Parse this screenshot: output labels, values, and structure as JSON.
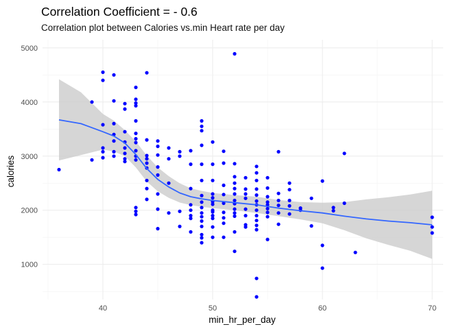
{
  "chart_data": {
    "type": "scatter",
    "title": "Correlation Coefficient = - 0.6",
    "subtitle": "Correlation plot between Calories vs.min Heart rate per day",
    "xlabel": "min_hr_per_day",
    "ylabel": "calories",
    "xlim": [
      34.5,
      71
    ],
    "ylim": [
      350,
      5150
    ],
    "x_ticks": [
      40,
      50,
      60,
      70
    ],
    "y_ticks": [
      1000,
      2000,
      3000,
      4000,
      5000
    ],
    "x_tick_labels": [
      "40",
      "50",
      "60",
      "70"
    ],
    "y_tick_labels": [
      "1000",
      "2000",
      "3000",
      "4000",
      "5000"
    ],
    "grid": true,
    "point_color": "#0000ff",
    "smooth_color": "#3366ff",
    "ribbon_color": "#cccccc",
    "points": [
      [
        36,
        2750
      ],
      [
        39,
        4000
      ],
      [
        39,
        2930
      ],
      [
        40,
        4550
      ],
      [
        40,
        4400
      ],
      [
        40,
        3580
      ],
      [
        40,
        3150
      ],
      [
        40,
        3080
      ],
      [
        40,
        2970
      ],
      [
        41,
        4500
      ],
      [
        41,
        4020
      ],
      [
        41,
        3600
      ],
      [
        41,
        3400
      ],
      [
        41,
        3280
      ],
      [
        41,
        3080
      ],
      [
        41,
        3000
      ],
      [
        42,
        3970
      ],
      [
        42,
        3870
      ],
      [
        42,
        3450
      ],
      [
        42,
        3260
      ],
      [
        42,
        3150
      ],
      [
        42,
        3050
      ],
      [
        42,
        2950
      ],
      [
        42,
        2900
      ],
      [
        43,
        4270
      ],
      [
        43,
        4050
      ],
      [
        43,
        3980
      ],
      [
        43,
        3930
      ],
      [
        43,
        3650
      ],
      [
        43,
        3420
      ],
      [
        43,
        3320
      ],
      [
        43,
        3250
      ],
      [
        43,
        3100
      ],
      [
        43,
        3000
      ],
      [
        43,
        2930
      ],
      [
        43,
        2050
      ],
      [
        43,
        1980
      ],
      [
        43,
        1920
      ],
      [
        44,
        4540
      ],
      [
        44,
        3300
      ],
      [
        44,
        3010
      ],
      [
        44,
        2950
      ],
      [
        44,
        2870
      ],
      [
        44,
        2780
      ],
      [
        44,
        2550
      ],
      [
        44,
        2400
      ],
      [
        44,
        2200
      ],
      [
        45,
        3280
      ],
      [
        45,
        3180
      ],
      [
        45,
        3020
      ],
      [
        45,
        2800
      ],
      [
        45,
        2650
      ],
      [
        45,
        2300
      ],
      [
        45,
        2020
      ],
      [
        45,
        1660
      ],
      [
        46,
        3150
      ],
      [
        46,
        2950
      ],
      [
        46,
        2500
      ],
      [
        46,
        1950
      ],
      [
        47,
        3080
      ],
      [
        47,
        3000
      ],
      [
        47,
        1980
      ],
      [
        47,
        1700
      ],
      [
        48,
        3100
      ],
      [
        48,
        2850
      ],
      [
        48,
        2400
      ],
      [
        48,
        2100
      ],
      [
        48,
        2000
      ],
      [
        48,
        1900
      ],
      [
        48,
        1850
      ],
      [
        48,
        1600
      ],
      [
        49,
        3650
      ],
      [
        49,
        3550
      ],
      [
        49,
        3470
      ],
      [
        49,
        3200
      ],
      [
        49,
        2850
      ],
      [
        49,
        2550
      ],
      [
        49,
        2270
      ],
      [
        49,
        2150
      ],
      [
        49,
        2050
      ],
      [
        49,
        1950
      ],
      [
        49,
        1880
      ],
      [
        49,
        1800
      ],
      [
        49,
        1700
      ],
      [
        49,
        1550
      ],
      [
        49,
        1490
      ],
      [
        49,
        1400
      ],
      [
        50,
        3260
      ],
      [
        50,
        2850
      ],
      [
        50,
        2550
      ],
      [
        50,
        2300
      ],
      [
        50,
        2230
      ],
      [
        50,
        2160
      ],
      [
        50,
        2110
      ],
      [
        50,
        2000
      ],
      [
        50,
        1970
      ],
      [
        50,
        1900
      ],
      [
        50,
        1850
      ],
      [
        50,
        1690
      ],
      [
        50,
        1500
      ],
      [
        51,
        3090
      ],
      [
        51,
        2870
      ],
      [
        51,
        2460
      ],
      [
        51,
        2290
      ],
      [
        51,
        2130
      ],
      [
        51,
        1960
      ],
      [
        51,
        1860
      ],
      [
        51,
        1760
      ],
      [
        51,
        1500
      ],
      [
        52,
        4890
      ],
      [
        52,
        2860
      ],
      [
        52,
        2620
      ],
      [
        52,
        2500
      ],
      [
        52,
        2400
      ],
      [
        52,
        2300
      ],
      [
        52,
        2180
      ],
      [
        52,
        2120
      ],
      [
        52,
        2020
      ],
      [
        52,
        1950
      ],
      [
        52,
        1890
      ],
      [
        52,
        1600
      ],
      [
        52,
        1240
      ],
      [
        53,
        2600
      ],
      [
        53,
        2390
      ],
      [
        53,
        2300
      ],
      [
        53,
        2220
      ],
      [
        53,
        2020
      ],
      [
        53,
        1900
      ],
      [
        53,
        1730
      ],
      [
        53,
        1690
      ],
      [
        54,
        2810
      ],
      [
        54,
        2690
      ],
      [
        54,
        2550
      ],
      [
        54,
        2390
      ],
      [
        54,
        2280
      ],
      [
        54,
        2170
      ],
      [
        54,
        2100
      ],
      [
        54,
        2000
      ],
      [
        54,
        1900
      ],
      [
        54,
        1810
      ],
      [
        54,
        1720
      ],
      [
        54,
        1640
      ],
      [
        54,
        740
      ],
      [
        54,
        400
      ],
      [
        55,
        2600
      ],
      [
        55,
        2410
      ],
      [
        55,
        2250
      ],
      [
        55,
        2150
      ],
      [
        55,
        2100
      ],
      [
        55,
        2030
      ],
      [
        55,
        1960
      ],
      [
        55,
        1880
      ],
      [
        55,
        1460
      ],
      [
        56,
        3080
      ],
      [
        56,
        2310
      ],
      [
        56,
        2180
      ],
      [
        56,
        2090
      ],
      [
        56,
        1950
      ],
      [
        56,
        1740
      ],
      [
        57,
        2500
      ],
      [
        57,
        2380
      ],
      [
        57,
        2180
      ],
      [
        57,
        2080
      ],
      [
        57,
        1930
      ],
      [
        58,
        2040
      ],
      [
        58,
        2000
      ],
      [
        59,
        2220
      ],
      [
        59,
        1710
      ],
      [
        60,
        2540
      ],
      [
        60,
        1350
      ],
      [
        60,
        930
      ],
      [
        61,
        2050
      ],
      [
        61,
        1990
      ],
      [
        62,
        3050
      ],
      [
        62,
        2130
      ],
      [
        63,
        1220
      ],
      [
        70,
        1870
      ],
      [
        70,
        1690
      ],
      [
        70,
        1580
      ]
    ],
    "smooth": [
      [
        36,
        3670
      ],
      [
        38,
        3600
      ],
      [
        40,
        3450
      ],
      [
        41,
        3370
      ],
      [
        42,
        3240
      ],
      [
        43,
        3030
      ],
      [
        44,
        2770
      ],
      [
        45,
        2570
      ],
      [
        46,
        2430
      ],
      [
        47,
        2320
      ],
      [
        48,
        2250
      ],
      [
        49,
        2210
      ],
      [
        50,
        2180
      ],
      [
        52,
        2140
      ],
      [
        54,
        2100
      ],
      [
        56,
        2040
      ],
      [
        58,
        1990
      ],
      [
        60,
        1950
      ],
      [
        62,
        1890
      ],
      [
        64,
        1840
      ],
      [
        66,
        1800
      ],
      [
        68,
        1770
      ],
      [
        70,
        1730
      ]
    ],
    "ribbon_half_width": [
      [
        36,
        750
      ],
      [
        38,
        580
      ],
      [
        40,
        330
      ],
      [
        42,
        240
      ],
      [
        44,
        240
      ],
      [
        46,
        200
      ],
      [
        48,
        155
      ],
      [
        50,
        140
      ],
      [
        52,
        140
      ],
      [
        54,
        150
      ],
      [
        56,
        150
      ],
      [
        58,
        160
      ],
      [
        60,
        190
      ],
      [
        62,
        260
      ],
      [
        64,
        360
      ],
      [
        66,
        440
      ],
      [
        68,
        520
      ],
      [
        70,
        630
      ]
    ]
  }
}
